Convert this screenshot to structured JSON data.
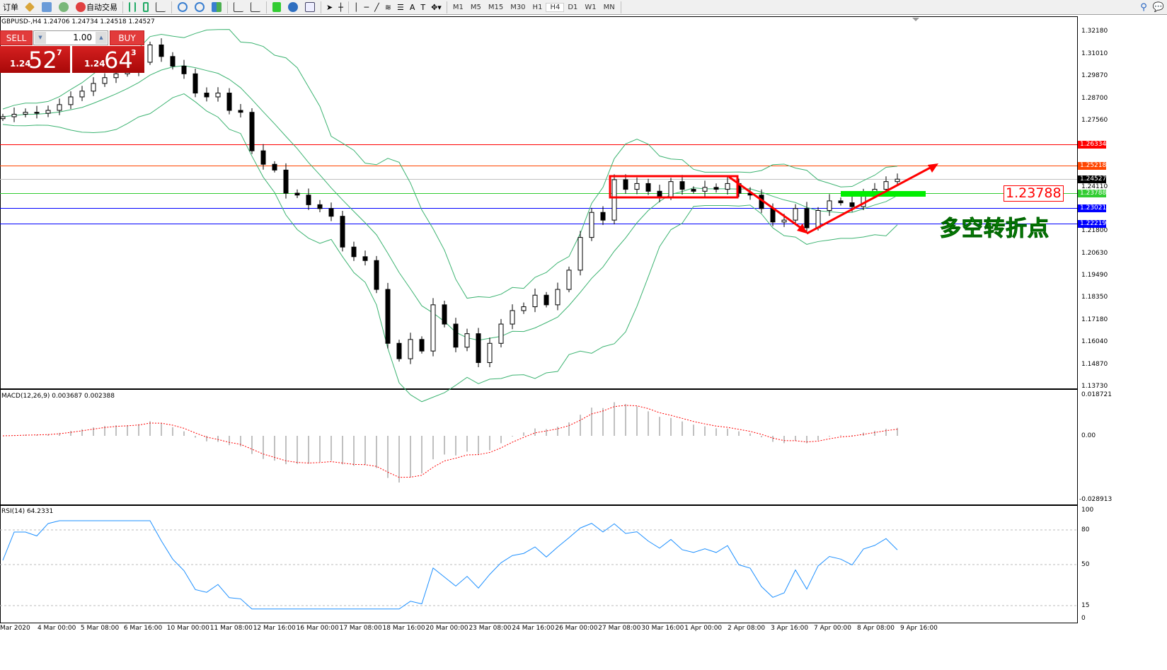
{
  "toolbar": {
    "new_order_label": "订单",
    "auto_trading_label": "自动交易",
    "timeframes": [
      "M1",
      "M5",
      "M15",
      "M30",
      "H1",
      "H4",
      "D1",
      "W1",
      "MN"
    ],
    "active_timeframe": "H4",
    "icons": [
      "gold-icon",
      "terminal-icon",
      "signal-icon",
      "auto-trade-icon",
      "bar-chart-icon",
      "candle-chart-icon",
      "line-chart-icon",
      "zoom-in-icon",
      "zoom-out-icon",
      "tile-icon",
      "autoscroll-icon",
      "chart-shift-icon",
      "indicators-icon",
      "periods-icon",
      "templates-icon",
      "cursor-icon",
      "crosshair-icon",
      "vertical-line-icon",
      "horizontal-line-icon",
      "trendline-icon",
      "fibo-fan-icon",
      "fibo-icon",
      "text-icon",
      "label-icon",
      "arrows-icon",
      "search-icon",
      "chat-icon"
    ]
  },
  "chart": {
    "header": "GBPUSD-,H4  1.24706 1.24734 1.24518 1.24527",
    "symbol": "GBPUSD-",
    "timeframe": "H4",
    "open": 1.24706,
    "high": 1.24734,
    "low": 1.24518,
    "close": 1.24527
  },
  "trade_panel": {
    "sell_label": "SELL",
    "buy_label": "BUY",
    "lot": "1.00",
    "sell_price": {
      "small": "1.24",
      "big": "52",
      "sup": "7"
    },
    "buy_price": {
      "small": "1.24",
      "big": "64",
      "sup": "3"
    }
  },
  "price_axis": {
    "ticks": [
      "1.32180",
      "1.31010",
      "1.29870",
      "1.28700",
      "1.27560",
      "1.24110",
      "1.21800",
      "1.20630",
      "1.19490",
      "1.18350",
      "1.17180",
      "1.16040",
      "1.14870",
      "1.13730"
    ],
    "range": [
      1.1373,
      1.3218
    ]
  },
  "levels": [
    {
      "price": "1.26334",
      "color": "#ff0000"
    },
    {
      "price": "1.25218",
      "color": "#ff4500"
    },
    {
      "price": "1.24527",
      "color": "#000000",
      "line": "#c0c0c0"
    },
    {
      "price": "1.23788",
      "color": "#32cd32"
    },
    {
      "price": "1.23021",
      "color": "#0000ff"
    },
    {
      "price": "1.22219",
      "color": "#0000ff"
    }
  ],
  "annotations": {
    "price_label": "1.23788",
    "text": "多空转折点",
    "rectangle_color": "#ff0000",
    "arrow_color": "#ff0000",
    "highlight_color": "#00ee00"
  },
  "chart_data": {
    "type": "candlestick",
    "closes": [
      1.2777,
      1.279,
      1.28,
      1.2795,
      1.281,
      1.284,
      1.288,
      1.291,
      1.295,
      1.298,
      1.3,
      1.3016,
      1.306,
      1.315,
      1.309,
      1.304,
      1.3,
      1.29,
      1.288,
      1.29,
      1.281,
      1.28,
      1.26,
      1.253,
      1.25,
      1.238,
      1.237,
      1.232,
      1.23,
      1.226,
      1.21,
      1.205,
      1.203,
      1.188,
      1.16,
      1.152,
      1.162,
      1.156,
      1.18,
      1.17,
      1.158,
      1.165,
      1.15,
      1.16,
      1.17,
      1.177,
      1.179,
      1.185,
      1.18,
      1.188,
      1.198,
      1.215,
      1.228,
      1.224,
      1.245,
      1.24,
      1.243,
      1.239,
      1.236,
      1.244,
      1.24,
      1.239,
      1.241,
      1.24,
      1.243,
      1.238,
      1.237,
      1.23,
      1.223,
      1.224,
      1.23,
      1.22,
      1.229,
      1.234,
      1.233,
      1.231,
      1.238,
      1.24,
      1.244,
      1.24527
    ],
    "dates": [
      "Mar 2020",
      "4 Mar 00:00",
      "5 Mar 08:00",
      "6 Mar 16:00",
      "10 Mar 00:00",
      "11 Mar 08:00",
      "12 Mar 16:00",
      "16 Mar 00:00",
      "17 Mar 08:00",
      "18 Mar 16:00",
      "20 Mar 00:00",
      "23 Mar 08:00",
      "24 Mar 16:00",
      "26 Mar 00:00",
      "27 Mar 08:00",
      "30 Mar 16:00",
      "1 Apr 00:00",
      "2 Apr 08:00",
      "3 Apr 16:00",
      "7 Apr 00:00",
      "8 Apr 08:00",
      "9 Apr 16:00"
    ],
    "indicators": {
      "bollinger_color": "#3cb371"
    }
  },
  "macd": {
    "label": "MACD(12,26,9) 0.003687 0.002388",
    "max": "0.018721",
    "zero": "0.00",
    "min": "-0.028913",
    "signal_color": "#ff0000",
    "hist_color": "#c0c0c0"
  },
  "rsi": {
    "label": "RSI(14) 64.2331",
    "ticks": [
      "100",
      "80",
      "50",
      "15",
      "0"
    ],
    "value": 64.2331,
    "color": "#1e90ff"
  }
}
